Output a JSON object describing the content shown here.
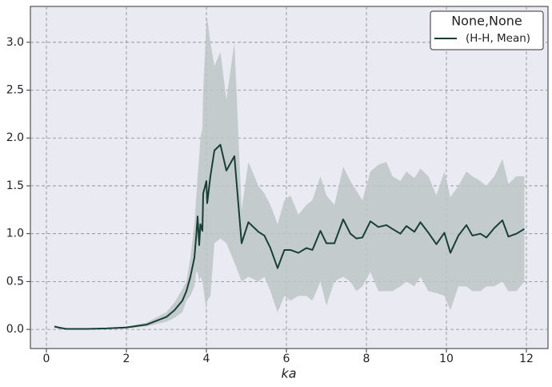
{
  "chart_data": {
    "type": "line",
    "x_label": "ka",
    "legend_title": "None,None",
    "legend_position": "upper right",
    "grid": true,
    "xlim": [
      -0.4,
      12.54
    ],
    "ylim": [
      -0.2,
      3.375
    ],
    "xticks": [
      0,
      2,
      4,
      6,
      8,
      10,
      12
    ],
    "yticks": [
      {
        "value": 0,
        "label": "0.0"
      },
      0.5,
      {
        "value": 1,
        "label": "1.0"
      },
      1.5,
      {
        "value": 2,
        "label": "2.0"
      },
      2.5,
      {
        "value": 3,
        "label": "3.0"
      }
    ],
    "x": [
      0.2,
      0.3,
      0.5,
      1.0,
      1.5,
      2.0,
      2.5,
      3.0,
      3.2,
      3.4,
      3.5,
      3.6,
      3.7,
      3.75,
      3.78,
      3.82,
      3.85,
      3.9,
      3.92,
      4.0,
      4.02,
      4.1,
      4.2,
      4.35,
      4.5,
      4.7,
      4.88,
      5.05,
      5.3,
      5.45,
      5.6,
      5.78,
      5.95,
      6.1,
      6.3,
      6.5,
      6.65,
      6.85,
      7.0,
      7.2,
      7.42,
      7.6,
      7.75,
      7.9,
      8.1,
      8.3,
      8.5,
      8.65,
      8.85,
      9.0,
      9.2,
      9.35,
      9.55,
      9.75,
      9.95,
      10.1,
      10.3,
      10.5,
      10.65,
      10.85,
      11.0,
      11.2,
      11.4,
      11.55,
      11.75,
      11.95
    ],
    "series": [
      {
        "name": "(H-H, Mean)",
        "color": "#173f36",
        "values": [
          0.03,
          0.02,
          0.005,
          0.005,
          0.01,
          0.02,
          0.05,
          0.13,
          0.2,
          0.3,
          0.4,
          0.55,
          0.75,
          1.0,
          1.18,
          0.88,
          1.1,
          1.03,
          1.42,
          1.55,
          1.32,
          1.6,
          1.87,
          1.93,
          1.66,
          1.81,
          0.9,
          1.12,
          1.02,
          0.98,
          0.85,
          0.64,
          0.83,
          0.83,
          0.8,
          0.85,
          0.83,
          1.03,
          0.9,
          0.9,
          1.15,
          1.0,
          0.95,
          0.96,
          1.13,
          1.07,
          1.09,
          1.05,
          1.0,
          1.08,
          1.02,
          1.12,
          1.01,
          0.89,
          1.01,
          0.8,
          0.98,
          1.09,
          0.98,
          1.0,
          0.96,
          1.06,
          1.14,
          0.97,
          1.0,
          1.05
        ]
      }
    ],
    "band": {
      "color": "#bcc6c6",
      "upper": [
        0.04,
        0.03,
        0.01,
        0.01,
        0.015,
        0.03,
        0.07,
        0.18,
        0.28,
        0.42,
        0.5,
        0.75,
        1.1,
        1.4,
        1.6,
        1.8,
        2.0,
        2.1,
        2.5,
        3.2,
        3.25,
        3.0,
        2.75,
        2.9,
        2.4,
        3.0,
        1.25,
        1.75,
        1.5,
        1.42,
        1.3,
        1.1,
        1.35,
        1.4,
        1.2,
        1.3,
        1.35,
        1.6,
        1.4,
        1.3,
        1.7,
        1.55,
        1.45,
        1.35,
        1.65,
        1.72,
        1.75,
        1.6,
        1.55,
        1.65,
        1.58,
        1.68,
        1.6,
        1.4,
        1.65,
        1.38,
        1.5,
        1.65,
        1.6,
        1.55,
        1.5,
        1.6,
        1.78,
        1.52,
        1.6,
        1.6
      ],
      "lower": [
        0.02,
        0.01,
        0.0,
        0.0,
        0.005,
        0.01,
        0.03,
        0.08,
        0.12,
        0.18,
        0.3,
        0.35,
        0.45,
        0.6,
        0.6,
        0.5,
        0.55,
        0.5,
        0.45,
        0.2,
        0.3,
        0.35,
        0.9,
        0.95,
        0.9,
        0.7,
        0.5,
        0.55,
        0.5,
        0.55,
        0.4,
        0.18,
        0.35,
        0.3,
        0.35,
        0.35,
        0.3,
        0.5,
        0.25,
        0.5,
        0.55,
        0.5,
        0.4,
        0.45,
        0.6,
        0.4,
        0.4,
        0.4,
        0.45,
        0.5,
        0.45,
        0.55,
        0.4,
        0.38,
        0.35,
        0.2,
        0.45,
        0.45,
        0.4,
        0.4,
        0.45,
        0.45,
        0.5,
        0.4,
        0.4,
        0.5
      ]
    }
  }
}
